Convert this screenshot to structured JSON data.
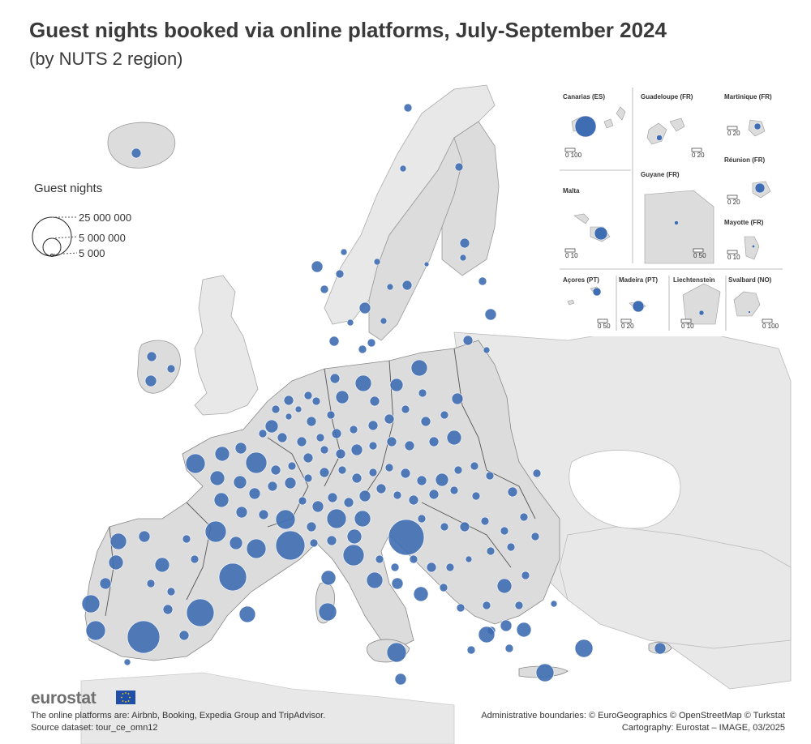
{
  "title": "Guest nights booked via online platforms, July-September 2024",
  "subtitle": "(by NUTS 2 region)",
  "legend": {
    "title": "Guest nights",
    "values": [
      "25 000 000",
      "5 000 000",
      "5 000"
    ]
  },
  "insets": [
    {
      "name": "Canarias (ES)",
      "scale": [
        "0",
        "100"
      ]
    },
    {
      "name": "Guadeloupe (FR)",
      "scale": [
        "0",
        "20"
      ]
    },
    {
      "name": "Martinique (FR)",
      "scale": [
        "0",
        "20"
      ]
    },
    {
      "name": "Réunion (FR)",
      "scale": [
        "0",
        "20"
      ]
    },
    {
      "name": "Guyane (FR)",
      "scale": [
        "0",
        "50"
      ]
    },
    {
      "name": "Malta",
      "scale": [
        "0",
        "10"
      ]
    },
    {
      "name": "Mayotte (FR)",
      "scale": [
        "0",
        "10"
      ]
    },
    {
      "name": "Açores (PT)",
      "scale": [
        "0",
        "50"
      ]
    },
    {
      "name": "Madeira (PT)",
      "scale": [
        "0",
        "20"
      ]
    },
    {
      "name": "Liechtenstein",
      "scale": [
        "0",
        "10"
      ]
    },
    {
      "name": "Svalbard (NO)",
      "scale": [
        "0",
        "100"
      ]
    }
  ],
  "colors": {
    "bubble": "#3f6db3",
    "land": "#dcdcdc",
    "nonEU": "#e8e8e8",
    "border": "#555555"
  },
  "footer": {
    "logo": "eurostat",
    "note": "The online platforms are: Airbnb, Booking, Expedia Group and TripAdvisor.",
    "source": "Source dataset: tour_ce_omn12",
    "boundaries": "Administrative boundaries: © EuroGeographics © OpenStreetMap © Turkstat",
    "cartography": "Cartography: Eurostat – IMAGE, 03/2025"
  }
}
